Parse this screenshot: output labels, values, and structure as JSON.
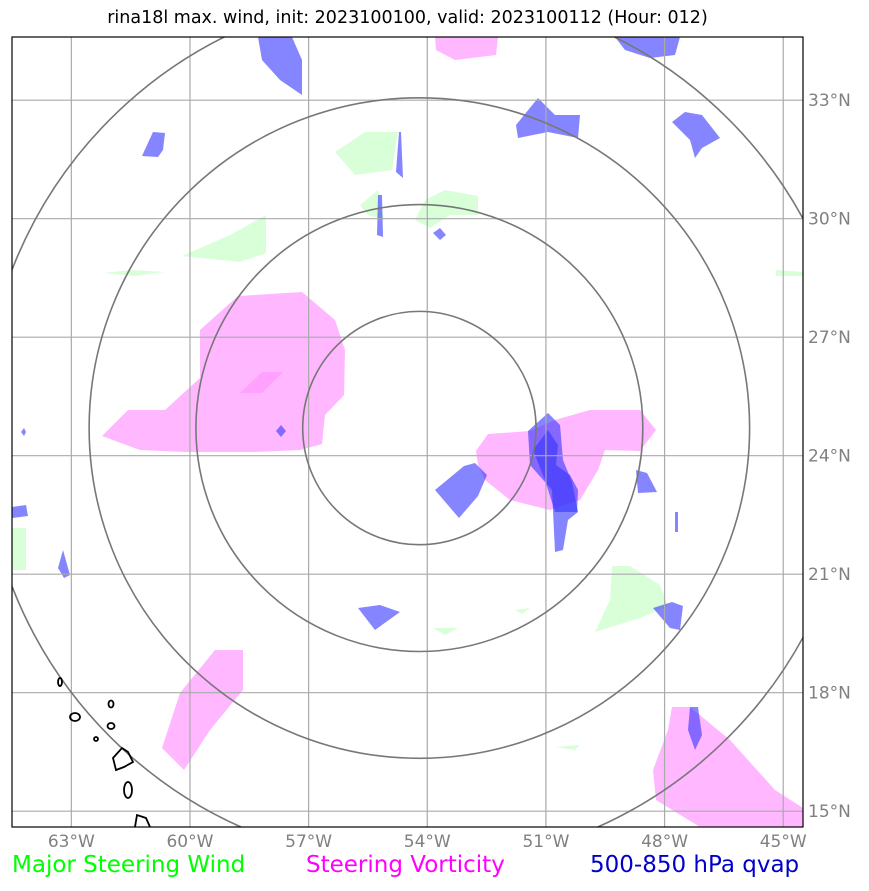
{
  "title": "rina18l max. wind, init: 2023100100, valid: 2023100112 (Hour: 012)",
  "map": {
    "lon_range": [
      -64.5,
      -44.5
    ],
    "lat_range": [
      14.6,
      34.6
    ],
    "lon_ticks": [
      {
        "value": -63,
        "label": "63°W"
      },
      {
        "value": -60,
        "label": "60°W"
      },
      {
        "value": -57,
        "label": "57°W"
      },
      {
        "value": -54,
        "label": "54°W"
      },
      {
        "value": -51,
        "label": "51°W"
      },
      {
        "value": -48,
        "label": "48°W"
      },
      {
        "value": -45,
        "label": "45°W"
      }
    ],
    "lat_ticks": [
      {
        "value": 33,
        "label": "33°N"
      },
      {
        "value": 30,
        "label": "30°N"
      },
      {
        "value": 27,
        "label": "27°N"
      },
      {
        "value": 24,
        "label": "24°N"
      },
      {
        "value": 21,
        "label": "21°N"
      },
      {
        "value": 18,
        "label": "18°N"
      },
      {
        "value": 15,
        "label": "15°N"
      }
    ],
    "storm_center": {
      "lon": -54.2,
      "lat": 24.7
    },
    "range_rings_deg": [
      2.95,
      5.65,
      8.35,
      11.05
    ],
    "gridlines": true,
    "colors": {
      "steering_wind": "#ccffcc",
      "steering_vorticity": "#ff99ff",
      "qvap": "#3333ff",
      "gridline": "#aaaaaa",
      "ring": "#777777",
      "coast": "#000000"
    }
  },
  "legend": {
    "wind": {
      "label": "Major Steering Wind",
      "color": "#00ff00"
    },
    "vorticity": {
      "label": "Steering Vorticity",
      "color": "#ff00ff"
    },
    "qvap": {
      "label": "500-850 hPa qvap",
      "color": "#0000cc"
    }
  }
}
